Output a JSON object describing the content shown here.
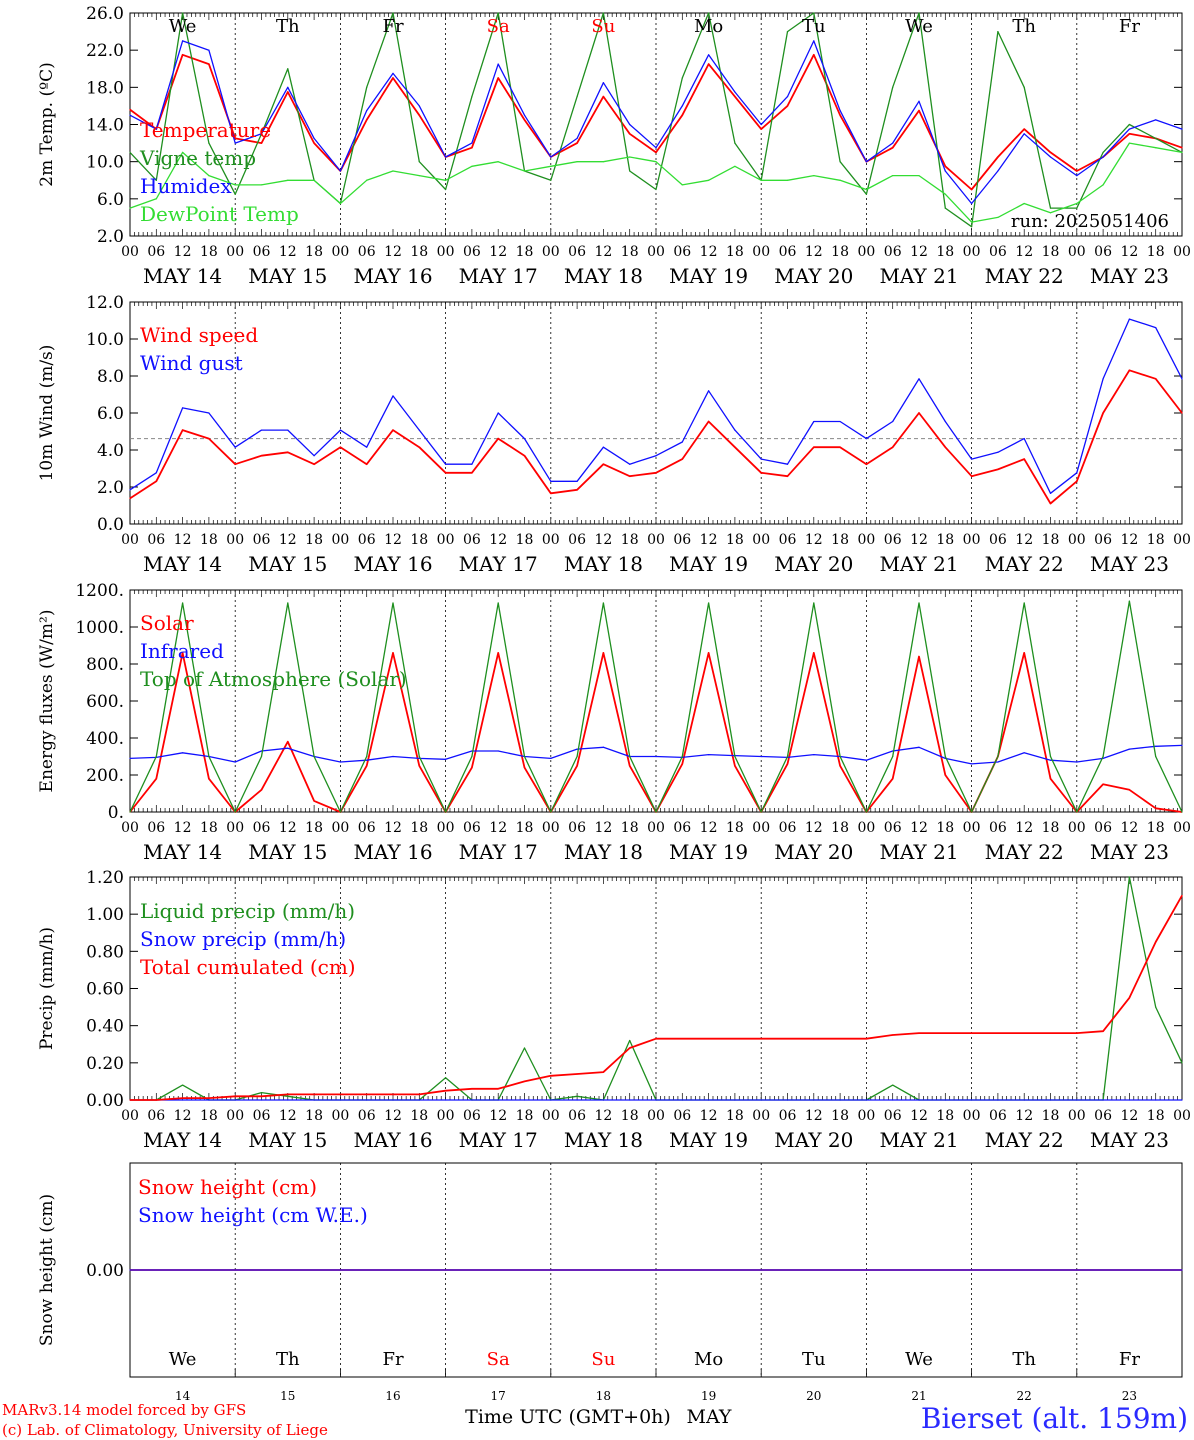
{
  "run_label": "run: 2025051406",
  "hour_ticks": [
    "00",
    "06",
    "12",
    "18"
  ],
  "last_tick": "00",
  "dates": [
    "MAY 14",
    "MAY 15",
    "MAY 16",
    "MAY 17",
    "MAY 18",
    "MAY 19",
    "MAY 20",
    "MAY 21",
    "MAY 22",
    "MAY 23"
  ],
  "weekdays": [
    {
      "label": "We",
      "color": "#000000"
    },
    {
      "label": "Th",
      "color": "#000000"
    },
    {
      "label": "Fr",
      "color": "#000000"
    },
    {
      "label": "Sa",
      "color": "#ff0000"
    },
    {
      "label": "Su",
      "color": "#ff0000"
    },
    {
      "label": "Mo",
      "color": "#000000"
    },
    {
      "label": "Tu",
      "color": "#000000"
    },
    {
      "label": "We",
      "color": "#000000"
    },
    {
      "label": "Th",
      "color": "#000000"
    },
    {
      "label": "Fr",
      "color": "#000000"
    }
  ],
  "day_numbers": [
    "14",
    "15",
    "16",
    "17",
    "18",
    "19",
    "20",
    "21",
    "22",
    "23"
  ],
  "xlabel": "Time UTC (GMT+0h)",
  "month_label": "MAY",
  "credits": [
    "MARv3.14 model forced by GFS",
    "(c) Lab. of Climatology, University of Liege"
  ],
  "station": "Bierset (alt. 159m)",
  "colors": {
    "red": "#ff0000",
    "green": "#1f8f1f",
    "blue": "#1010ff",
    "lightgreen": "#33dd33"
  },
  "chart_data": [
    {
      "type": "line",
      "ylabel": "2m Temp. (ºC)",
      "ylim": [
        2.0,
        26.0
      ],
      "yticks": [
        "2.0",
        "6.0",
        "10.0",
        "14.0",
        "18.0",
        "22.0",
        "26.0"
      ],
      "x_days": [
        0,
        0.25,
        0.5,
        0.75,
        1,
        1.25,
        1.5,
        1.75,
        2,
        2.25,
        2.5,
        2.75,
        3,
        3.25,
        3.5,
        3.75,
        4,
        4.25,
        4.5,
        4.75,
        5,
        5.25,
        5.5,
        5.75,
        6,
        6.25,
        6.5,
        6.75,
        7,
        7.25,
        7.5,
        7.75,
        8,
        8.25,
        8.5,
        8.75,
        9,
        9.25,
        9.5,
        9.75,
        10
      ],
      "series": [
        {
          "name": "Temperature",
          "color": "red",
          "values": [
            15.6,
            13.5,
            21.5,
            20.5,
            12.5,
            12.0,
            17.5,
            12.0,
            9.0,
            14.5,
            19.0,
            15.0,
            10.5,
            11.5,
            19.0,
            14.5,
            10.5,
            12.0,
            17.0,
            13.0,
            11.0,
            15.0,
            20.5,
            17.0,
            13.5,
            16.0,
            21.5,
            15.0,
            10.0,
            11.5,
            15.5,
            9.5,
            7.0,
            10.5,
            13.5,
            11.0,
            9.0,
            10.5,
            13.0,
            12.5,
            11.5
          ]
        },
        {
          "name": "Vigne temp",
          "color": "green",
          "values": [
            11.0,
            8.0,
            26.0,
            12.0,
            6.5,
            13.0,
            20.0,
            8.0,
            5.5,
            18.0,
            26.0,
            10.0,
            7.0,
            17.0,
            26.0,
            9.0,
            8.0,
            17.0,
            26.0,
            9.0,
            7.0,
            19.0,
            26.0,
            12.0,
            8.0,
            24.0,
            26.0,
            10.0,
            6.5,
            18.0,
            26.0,
            5.0,
            3.0,
            24.0,
            18.0,
            5.0,
            5.0,
            11.0,
            14.0,
            12.5,
            11.0
          ]
        },
        {
          "name": "Humidex",
          "color": "blue",
          "values": [
            15.0,
            13.5,
            23.0,
            22.0,
            12.0,
            13.0,
            18.0,
            12.5,
            9.0,
            15.5,
            19.5,
            16.0,
            10.5,
            12.0,
            20.5,
            15.0,
            10.5,
            12.5,
            18.5,
            14.0,
            11.5,
            16.0,
            21.5,
            17.5,
            14.0,
            17.0,
            23.0,
            15.5,
            10.0,
            12.0,
            16.5,
            9.0,
            5.5,
            9.0,
            13.0,
            10.5,
            8.5,
            10.5,
            13.5,
            14.5,
            13.5
          ]
        },
        {
          "name": "DewPoint Temp",
          "color": "lightgreen",
          "values": [
            5.0,
            6.0,
            11.0,
            8.5,
            7.5,
            7.5,
            8.0,
            8.0,
            5.5,
            8.0,
            9.0,
            8.5,
            8.0,
            9.5,
            10.0,
            9.0,
            9.5,
            10.0,
            10.0,
            10.5,
            10.0,
            7.5,
            8.0,
            9.5,
            8.0,
            8.0,
            8.5,
            8.0,
            7.0,
            8.5,
            8.5,
            6.5,
            3.5,
            4.0,
            5.5,
            4.5,
            5.5,
            7.5,
            12.0,
            11.5,
            11.0
          ]
        }
      ]
    },
    {
      "type": "line",
      "ylabel": "10m Wind (m/s)",
      "ylim": [
        0.0,
        13.0
      ],
      "yticks": [
        "0.0",
        "2.0",
        "4.0",
        "6.0",
        "8.0",
        "10.0",
        "12.0"
      ],
      "reference_line": 5.0,
      "x_days": [
        0,
        0.25,
        0.5,
        0.75,
        1,
        1.25,
        1.5,
        1.75,
        2,
        2.25,
        2.5,
        2.75,
        3,
        3.25,
        3.5,
        3.75,
        4,
        4.25,
        4.5,
        4.75,
        5,
        5.25,
        5.5,
        5.75,
        6,
        6.25,
        6.5,
        6.75,
        7,
        7.25,
        7.5,
        7.75,
        8,
        8.25,
        8.5,
        8.75,
        9,
        9.25,
        9.5,
        9.75,
        10
      ],
      "series": [
        {
          "name": "Wind speed",
          "color": "red",
          "values": [
            1.5,
            2.5,
            5.5,
            5.0,
            3.5,
            4.0,
            4.2,
            3.5,
            4.5,
            3.5,
            5.5,
            4.5,
            3.0,
            3.0,
            5.0,
            4.0,
            1.8,
            2.0,
            3.5,
            2.8,
            3.0,
            3.8,
            6.0,
            4.5,
            3.0,
            2.8,
            4.5,
            4.5,
            3.5,
            4.5,
            6.5,
            4.5,
            2.8,
            3.2,
            3.8,
            1.2,
            2.5,
            6.5,
            9.0,
            8.5,
            6.5
          ]
        },
        {
          "name": "Wind gust",
          "color": "blue",
          "values": [
            2.0,
            3.0,
            6.8,
            6.5,
            4.5,
            5.5,
            5.5,
            4.0,
            5.5,
            4.5,
            7.5,
            5.5,
            3.5,
            3.5,
            6.5,
            5.0,
            2.5,
            2.5,
            4.5,
            3.5,
            4.0,
            4.8,
            7.8,
            5.5,
            3.8,
            3.5,
            6.0,
            6.0,
            5.0,
            6.0,
            8.5,
            6.0,
            3.8,
            4.2,
            5.0,
            1.8,
            3.0,
            8.5,
            12.0,
            11.5,
            8.5
          ]
        }
      ]
    },
    {
      "type": "line",
      "ylabel": "Energy fluxes (W/m²)",
      "ylim": [
        0,
        1200
      ],
      "yticks": [
        "0.",
        "200.",
        "400.",
        "600.",
        "800.",
        "1000.",
        "1200."
      ],
      "x_days": [
        0,
        0.25,
        0.5,
        0.75,
        1,
        1.25,
        1.5,
        1.75,
        2,
        2.25,
        2.5,
        2.75,
        3,
        3.25,
        3.5,
        3.75,
        4,
        4.25,
        4.5,
        4.75,
        5,
        5.25,
        5.5,
        5.75,
        6,
        6.25,
        6.5,
        6.75,
        7,
        7.25,
        7.5,
        7.75,
        8,
        8.25,
        8.5,
        8.75,
        9,
        9.25,
        9.5,
        9.75,
        10
      ],
      "series": [
        {
          "name": "Solar",
          "color": "red",
          "values": [
            0,
            180,
            860,
            180,
            0,
            120,
            380,
            60,
            0,
            250,
            860,
            250,
            0,
            240,
            860,
            240,
            0,
            250,
            860,
            250,
            0,
            260,
            860,
            250,
            0,
            260,
            860,
            250,
            0,
            180,
            840,
            200,
            0,
            300,
            860,
            180,
            0,
            150,
            120,
            20,
            0
          ]
        },
        {
          "name": "Infrared",
          "color": "blue",
          "values": [
            290,
            295,
            320,
            300,
            270,
            330,
            345,
            300,
            270,
            280,
            300,
            290,
            285,
            330,
            330,
            300,
            290,
            340,
            350,
            300,
            300,
            295,
            310,
            305,
            300,
            295,
            310,
            300,
            280,
            330,
            350,
            290,
            260,
            270,
            320,
            280,
            270,
            290,
            340,
            355,
            360
          ]
        },
        {
          "name": "Top of Atmosphere (Solar)",
          "color": "green",
          "values": [
            0,
            300,
            1130,
            300,
            0,
            300,
            1130,
            300,
            0,
            300,
            1130,
            300,
            0,
            300,
            1130,
            300,
            0,
            300,
            1130,
            300,
            0,
            300,
            1130,
            300,
            0,
            300,
            1130,
            300,
            0,
            300,
            1130,
            300,
            0,
            300,
            1130,
            300,
            0,
            300,
            1140,
            300,
            0
          ]
        }
      ]
    },
    {
      "type": "line",
      "ylabel": "Precip (mm/h)",
      "ylim": [
        0.0,
        1.2
      ],
      "yticks": [
        "0.00",
        "0.20",
        "0.40",
        "0.60",
        "0.80",
        "1.00",
        "1.20"
      ],
      "x_days": [
        0,
        0.25,
        0.5,
        0.75,
        1,
        1.25,
        1.5,
        1.75,
        2,
        2.25,
        2.5,
        2.75,
        3,
        3.25,
        3.5,
        3.75,
        4,
        4.25,
        4.5,
        4.75,
        5,
        5.25,
        5.5,
        5.75,
        6,
        6.25,
        6.5,
        6.75,
        7,
        7.25,
        7.5,
        7.75,
        8,
        8.25,
        8.5,
        8.75,
        9,
        9.25,
        9.5,
        9.75,
        10
      ],
      "series": [
        {
          "name": "Liquid precip (mm/h)",
          "color": "green",
          "values": [
            0,
            0,
            0.08,
            0,
            0,
            0.04,
            0.02,
            0,
            0,
            0,
            0,
            0,
            0.12,
            0,
            0,
            0.28,
            0,
            0.02,
            0,
            0.32,
            0,
            0,
            0,
            0,
            0,
            0,
            0,
            0,
            0,
            0.08,
            0,
            0,
            0,
            0,
            0,
            0,
            0,
            0,
            1.2,
            0.5,
            0.2
          ]
        },
        {
          "name": "Snow precip (mm/h)",
          "color": "blue",
          "values": [
            0,
            0,
            0,
            0,
            0,
            0,
            0,
            0,
            0,
            0,
            0,
            0,
            0,
            0,
            0,
            0,
            0,
            0,
            0,
            0,
            0,
            0,
            0,
            0,
            0,
            0,
            0,
            0,
            0,
            0,
            0,
            0,
            0,
            0,
            0,
            0,
            0,
            0,
            0,
            0,
            0
          ]
        },
        {
          "name": "Total cumulated (cm)",
          "color": "red",
          "values": [
            0,
            0,
            0.01,
            0.01,
            0.02,
            0.02,
            0.03,
            0.03,
            0.03,
            0.03,
            0.03,
            0.03,
            0.05,
            0.06,
            0.06,
            0.1,
            0.13,
            0.14,
            0.15,
            0.28,
            0.33,
            0.33,
            0.33,
            0.33,
            0.33,
            0.33,
            0.33,
            0.33,
            0.33,
            0.35,
            0.36,
            0.36,
            0.36,
            0.36,
            0.36,
            0.36,
            0.36,
            0.37,
            0.55,
            0.85,
            1.1
          ]
        }
      ]
    },
    {
      "type": "line",
      "ylabel": "Snow height (cm)",
      "ylim": [
        -1,
        1
      ],
      "yticks": [
        "0.00"
      ],
      "x_days": [
        0,
        10
      ],
      "series": [
        {
          "name": "Snow height (cm)",
          "color": "red",
          "values": [
            0,
            0
          ]
        },
        {
          "name": "Snow height (cm W.E.)",
          "color": "blue",
          "values": [
            0,
            0
          ]
        }
      ]
    }
  ]
}
